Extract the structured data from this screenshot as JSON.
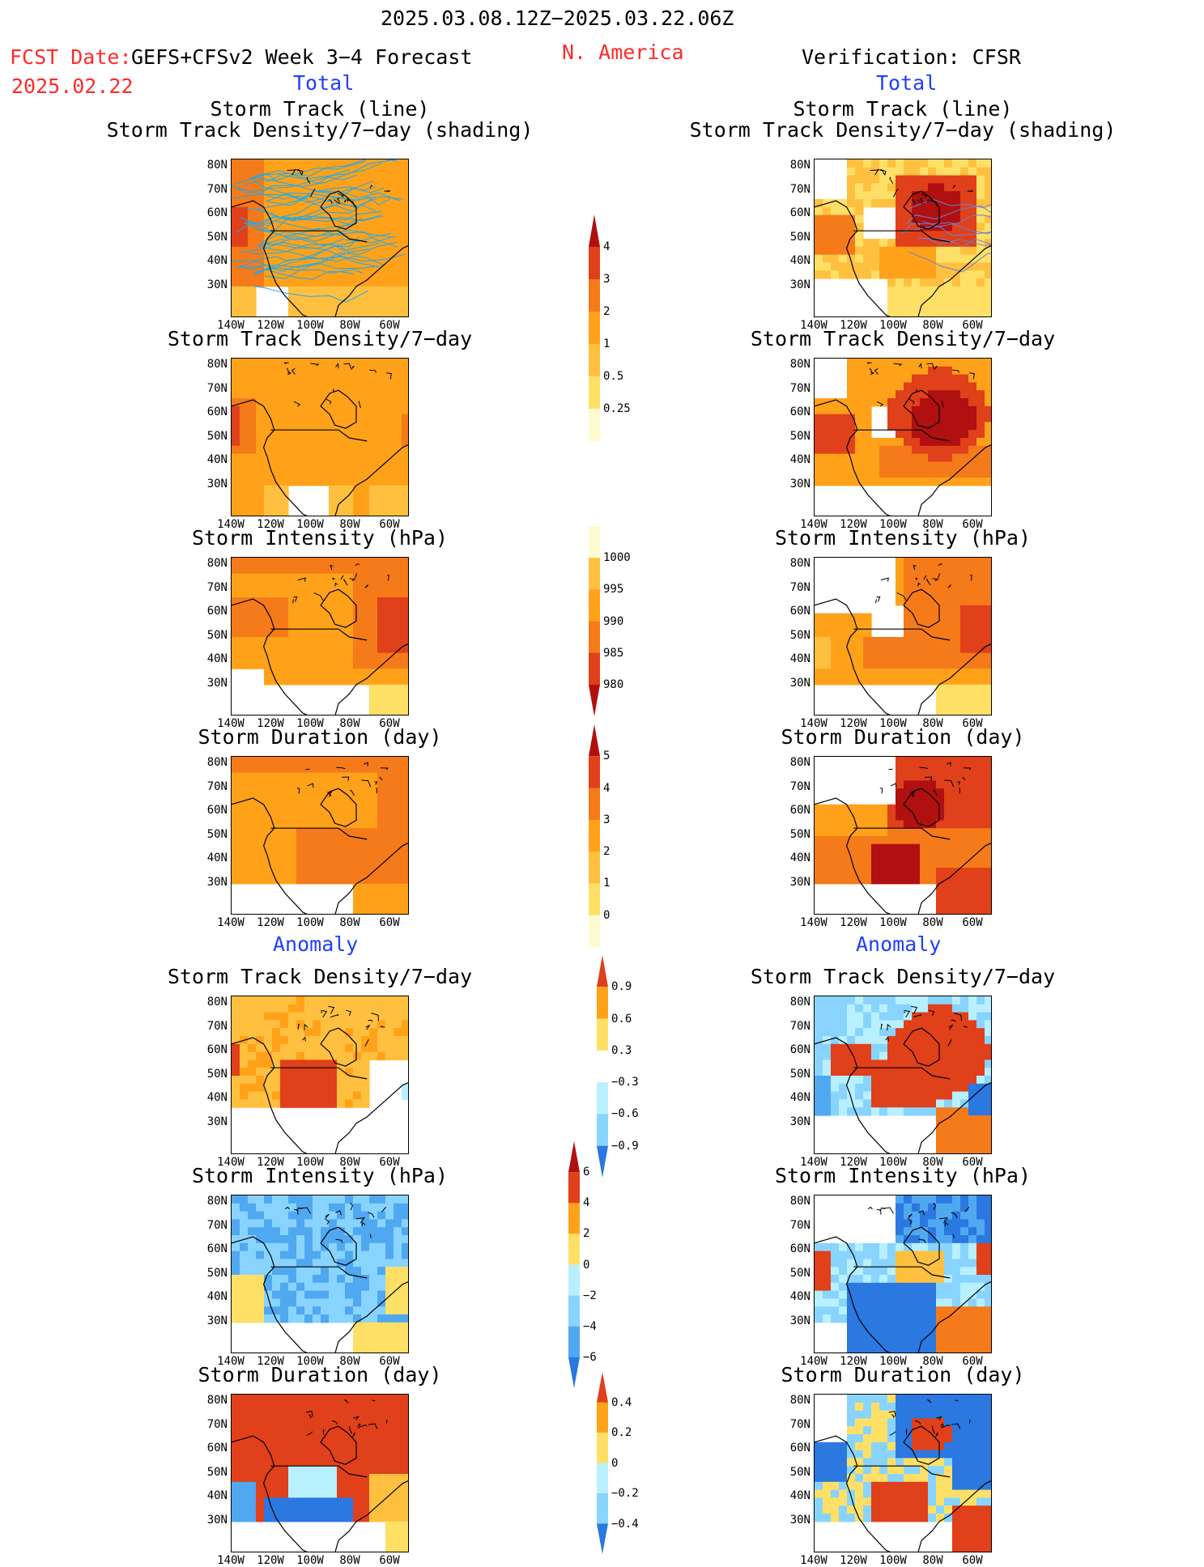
{
  "header": {
    "period": "2025.03.08.12Z−2025.03.22.06Z",
    "fcst_label": "FCST Date:",
    "fcst_date": "2025.02.22",
    "model": "GEFS+CFSv2 Week 3−4 Forecast",
    "region": "N. America",
    "verification": "Verification: CFSR"
  },
  "sections": {
    "total": "Total",
    "anomaly": "Anomaly"
  },
  "titles": {
    "track_line": "Storm Track (line)",
    "track_shading": "Storm Track Density/7−day (shading)",
    "density": "Storm Track Density/7−day",
    "intensity": "Storm Intensity (hPa)",
    "duration": "Storm Duration (day)"
  },
  "axes": {
    "lat": [
      "80N",
      "70N",
      "60N",
      "50N",
      "40N",
      "30N"
    ],
    "lon": [
      "140W",
      "120W",
      "100W",
      "80W",
      "60W"
    ]
  },
  "colorbars": {
    "density_total": [
      "4",
      "3",
      "2",
      "1",
      "0.5",
      "0.25"
    ],
    "intensity_total": [
      "1000",
      "995",
      "990",
      "985",
      "980"
    ],
    "duration_total": [
      "5",
      "4",
      "3",
      "2",
      "1",
      "0"
    ],
    "density_anom": [
      "0.9",
      "0.6",
      "0.3",
      "−0.3",
      "−0.6",
      "−0.9"
    ],
    "intensity_anom": [
      "6",
      "4",
      "2",
      "0",
      "−2",
      "−4",
      "−6"
    ],
    "duration_anom": [
      "0.4",
      "0.2",
      "0",
      "−0.2",
      "−0.4"
    ]
  },
  "colors": {
    "warm": [
      "#fff7b0",
      "#ffe066",
      "#ffc040",
      "#ffa21a",
      "#f57a1a",
      "#e0401a",
      "#b01010"
    ],
    "cool": [
      "#b8f0ff",
      "#88d4ff",
      "#50a8f0",
      "#2a78e0",
      "#1858c8"
    ],
    "track_line": "#22a8e8",
    "title_red": "#ff2a2a",
    "title_blue": "#1f3fff"
  }
}
